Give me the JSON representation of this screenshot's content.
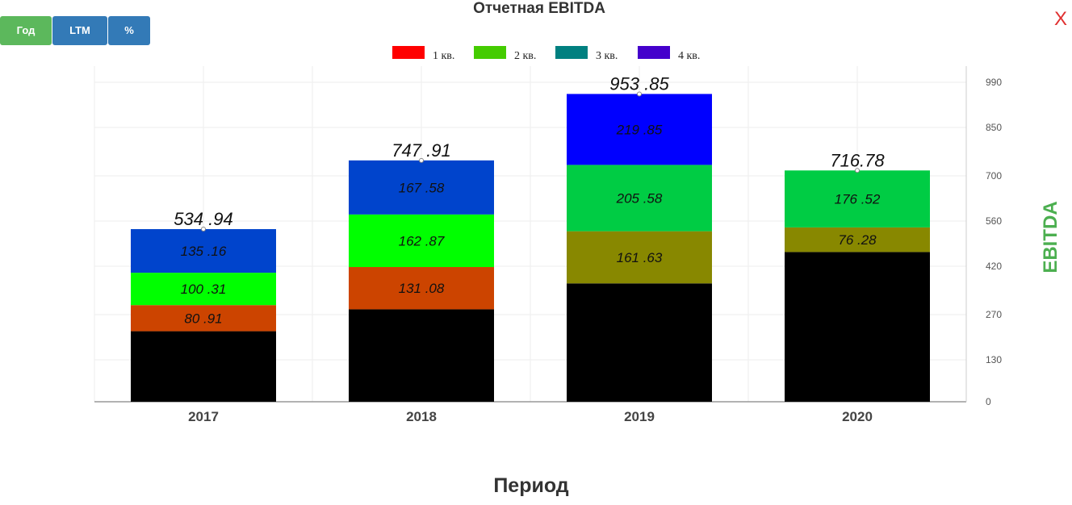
{
  "title": "Отчетная EBITDA",
  "buttons": {
    "year": "Год",
    "ltm": "LTM",
    "percent": "%"
  },
  "close_label": "X",
  "chart_data": {
    "type": "bar",
    "stacked": true,
    "categories": [
      "2017",
      "2018",
      "2019",
      "2020"
    ],
    "xlabel": "Период",
    "ylabel": "EBITDA",
    "ylim": [
      0,
      1040
    ],
    "yticks": [
      0,
      130,
      270,
      420,
      560,
      700,
      850,
      990
    ],
    "legend_position": "top-center",
    "grid": true,
    "legend": [
      {
        "name": "1 кв.",
        "color": "#ff0000"
      },
      {
        "name": "2 кв.",
        "color": "#44cc00"
      },
      {
        "name": "3 кв.",
        "color": "#008080"
      },
      {
        "name": "4 кв.",
        "color": "#4400cc"
      }
    ],
    "stacks": [
      {
        "category": "2017",
        "total_label": "534 .94",
        "segments": [
          {
            "value": 218.56,
            "color": "#000000",
            "label": ""
          },
          {
            "value": 80.91,
            "color": "#cc4400",
            "label": "80 .91"
          },
          {
            "value": 100.31,
            "color": "#00ff00",
            "label": "100 .31"
          },
          {
            "value": 135.16,
            "color": "#0044cc",
            "label": "135 .16"
          }
        ]
      },
      {
        "category": "2018",
        "total_label": "747 .91",
        "segments": [
          {
            "value": 286.38,
            "color": "#000000",
            "label": ""
          },
          {
            "value": 131.08,
            "color": "#cc4400",
            "label": "131 .08"
          },
          {
            "value": 162.87,
            "color": "#00ff00",
            "label": "162 .87"
          },
          {
            "value": 167.58,
            "color": "#0044cc",
            "label": "167 .58"
          }
        ]
      },
      {
        "category": "2019",
        "total_label": "953 .85",
        "segments": [
          {
            "value": 366.79,
            "color": "#000000",
            "label": ""
          },
          {
            "value": 161.63,
            "color": "#888800",
            "label": "161 .63"
          },
          {
            "value": 205.58,
            "color": "#00cc44",
            "label": "205 .58"
          },
          {
            "value": 219.85,
            "color": "#0000ff",
            "label": "219 .85"
          }
        ]
      },
      {
        "category": "2020",
        "total_label": "716.78",
        "segments": [
          {
            "value": 463.98,
            "color": "#000000",
            "label": ""
          },
          {
            "value": 76.28,
            "color": "#888800",
            "label": "76 .28"
          },
          {
            "value": 176.52,
            "color": "#00cc44",
            "label": "176 .52"
          }
        ]
      }
    ]
  }
}
